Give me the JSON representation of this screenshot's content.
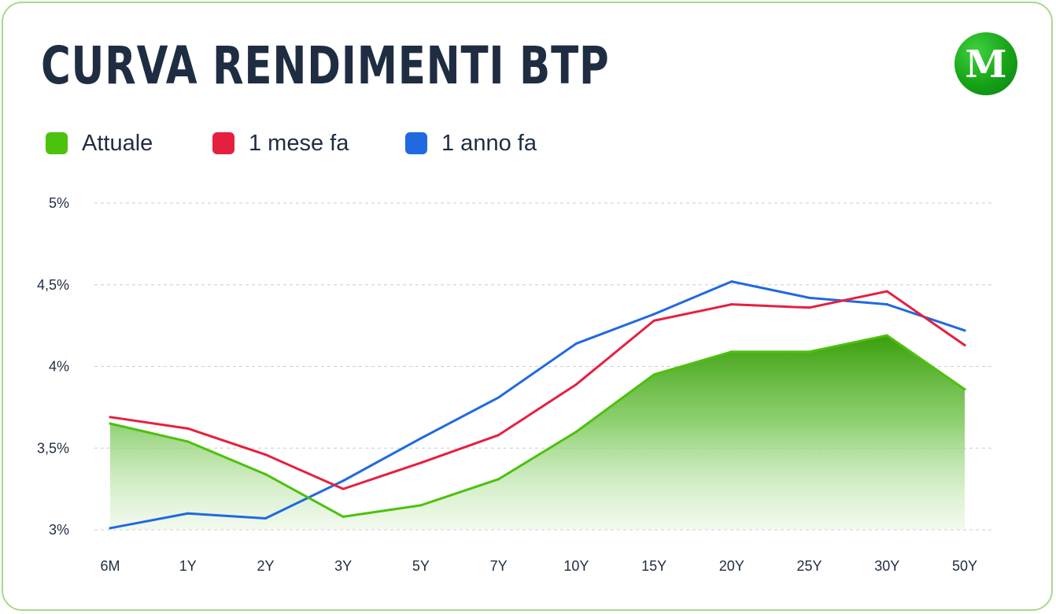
{
  "title": "CURVA RENDIMENTI BTP",
  "logo": {
    "letter": "M",
    "icon": "m-logo-icon",
    "color": "#1aa51a"
  },
  "legend": [
    {
      "label": "Attuale",
      "color": "#4cc10e"
    },
    {
      "label": "1 mese fa",
      "color": "#e5203f"
    },
    {
      "label": "1 anno fa",
      "color": "#2069e0"
    }
  ],
  "chart_data": {
    "type": "line",
    "title": "CURVA RENDIMENTI BTP",
    "xlabel": "",
    "ylabel": "",
    "categories": [
      "6M",
      "1Y",
      "2Y",
      "3Y",
      "5Y",
      "7Y",
      "10Y",
      "15Y",
      "20Y",
      "25Y",
      "30Y",
      "50Y"
    ],
    "y_ticks": [
      "5%",
      "4,5%",
      "4%",
      "3,5%",
      "3%"
    ],
    "ylim": [
      3,
      5
    ],
    "grid": true,
    "legend_position": "top-left",
    "series": [
      {
        "name": "Attuale",
        "color": "#4cc10e",
        "fill": "area-gradient",
        "values": [
          3.65,
          3.54,
          3.34,
          3.08,
          3.15,
          3.31,
          3.6,
          3.95,
          4.09,
          4.09,
          4.19,
          3.86
        ]
      },
      {
        "name": "1 mese fa",
        "color": "#e5203f",
        "values": [
          3.69,
          3.62,
          3.46,
          3.25,
          3.41,
          3.58,
          3.89,
          4.28,
          4.38,
          4.36,
          4.46,
          4.13
        ]
      },
      {
        "name": "1 anno fa",
        "color": "#2069e0",
        "values": [
          3.01,
          3.1,
          3.07,
          3.3,
          3.56,
          3.81,
          4.14,
          4.32,
          4.52,
          4.42,
          4.38,
          4.22
        ]
      }
    ]
  }
}
